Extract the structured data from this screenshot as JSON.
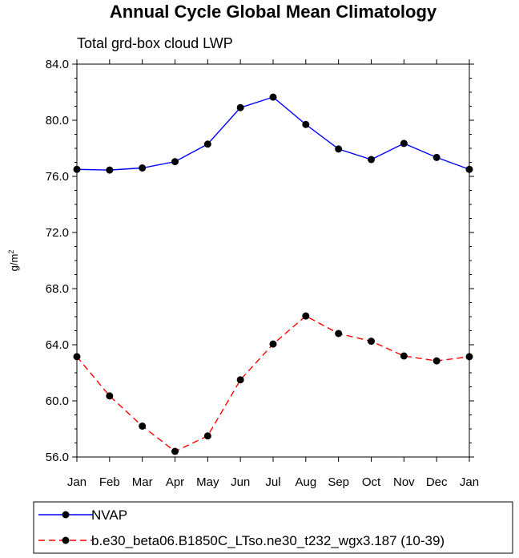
{
  "chart_data": {
    "type": "line",
    "title": "Annual Cycle Global Mean Climatology",
    "subtitle": "Total grd-box cloud LWP",
    "xlabel": "",
    "ylabel": "g/m",
    "ylabel_superscript": "2",
    "categories": [
      "Jan",
      "Feb",
      "Mar",
      "Apr",
      "May",
      "Jun",
      "Jul",
      "Aug",
      "Sep",
      "Oct",
      "Nov",
      "Dec",
      "Jan"
    ],
    "ylim": [
      56.0,
      84.0
    ],
    "yticks": [
      56.0,
      60.0,
      64.0,
      68.0,
      72.0,
      76.0,
      80.0,
      84.0
    ],
    "ytick_labels": [
      "56.0",
      "60.0",
      "64.0",
      "68.0",
      "72.0",
      "76.0",
      "80.0",
      "84.0"
    ],
    "grid": false,
    "legend_position": "bottom",
    "series": [
      {
        "name": "NVAP",
        "color": "#0000ff",
        "dash": "solid",
        "marker": "circle",
        "values": [
          76.5,
          76.45,
          76.6,
          77.05,
          78.3,
          80.9,
          81.65,
          79.7,
          77.95,
          77.2,
          78.35,
          77.35,
          76.5
        ]
      },
      {
        "name": "b.e30_beta06.B1850C_LTso.ne30_t232_wgx3.187 (10-39)",
        "color": "#ff0000",
        "dash": "dashed",
        "marker": "circle",
        "values": [
          63.15,
          60.35,
          58.2,
          56.4,
          57.5,
          61.5,
          64.05,
          66.05,
          64.8,
          64.25,
          63.2,
          62.85,
          63.15
        ]
      }
    ]
  }
}
